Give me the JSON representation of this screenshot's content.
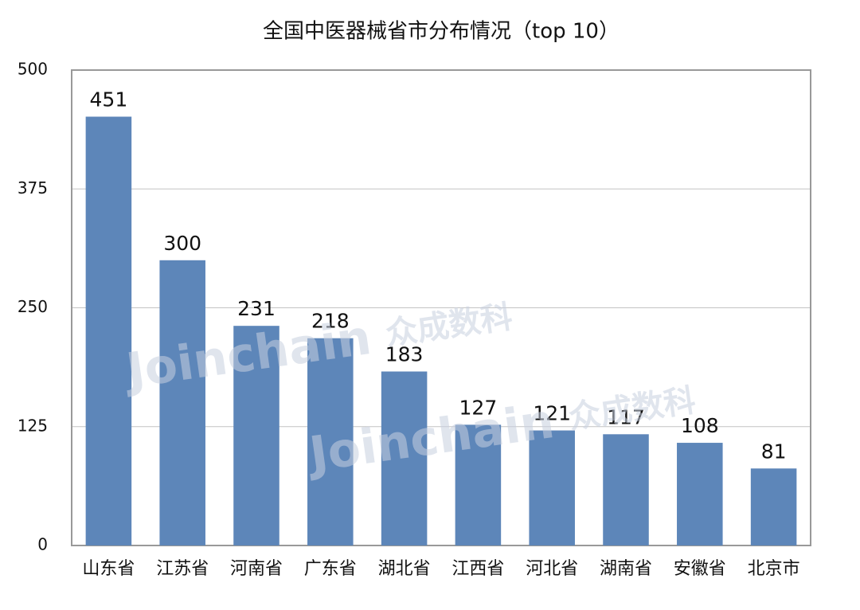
{
  "chart_data": {
    "type": "bar",
    "title": "全国中医器械省市分布情况（top 10）",
    "categories": [
      "山东省",
      "江苏省",
      "河南省",
      "广东省",
      "湖北省",
      "江西省",
      "河北省",
      "湖南省",
      "安徽省",
      "北京市"
    ],
    "values": [
      451,
      300,
      231,
      218,
      183,
      127,
      121,
      117,
      108,
      81
    ],
    "color": "#5d86b9",
    "ylim": [
      0,
      500
    ],
    "yticks": [
      0,
      125,
      250,
      375,
      500
    ],
    "grid": true,
    "watermark": {
      "brand": "Joinchain",
      "text": "众成数科"
    }
  }
}
